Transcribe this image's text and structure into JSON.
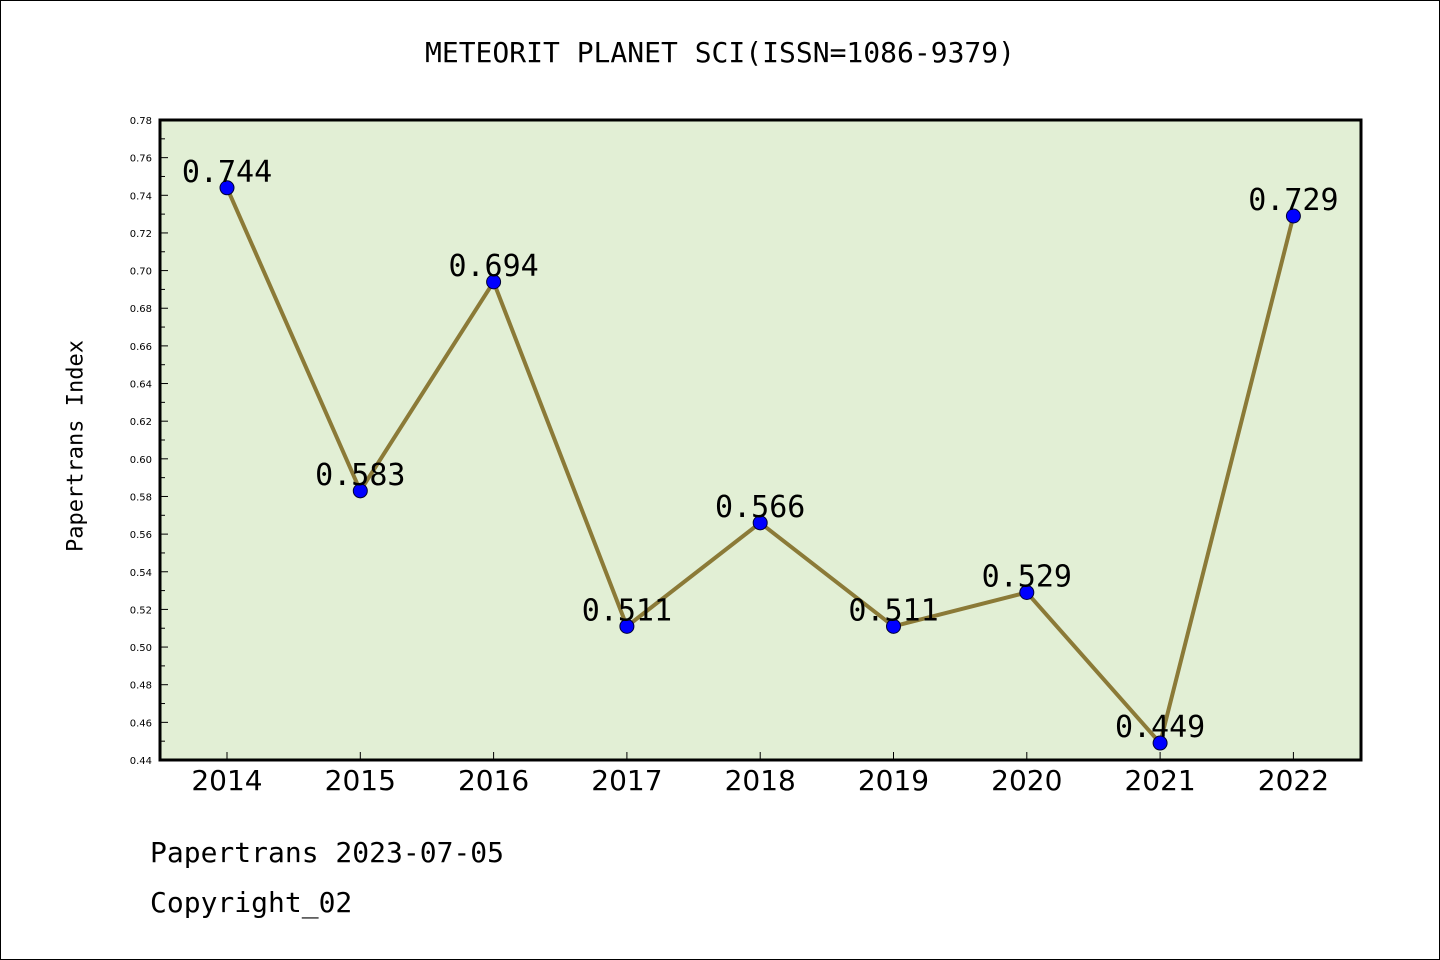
{
  "chart_data": {
    "type": "line",
    "title": "METEORIT PLANET SCI(ISSN=1086-9379)",
    "ylabel": "Papertrans Index",
    "xlabel": "",
    "categories": [
      "2014",
      "2015",
      "2016",
      "2017",
      "2018",
      "2019",
      "2020",
      "2021",
      "2022"
    ],
    "series": [
      {
        "values": [
          0.744,
          0.583,
          0.694,
          0.511,
          0.566,
          0.511,
          0.529,
          0.449,
          0.729
        ],
        "labels": [
          "0.744",
          "0.583",
          "0.694",
          "0.511",
          "0.566",
          "0.511",
          "0.529",
          "0.449",
          "0.729"
        ]
      }
    ],
    "ylim": [
      0.44,
      0.78
    ],
    "yticks": [
      "0.44",
      "0.46",
      "0.48",
      "0.50",
      "0.52",
      "0.54",
      "0.56",
      "0.58",
      "0.60",
      "0.62",
      "0.64",
      "0.66",
      "0.68",
      "0.70",
      "0.72",
      "0.74",
      "0.76",
      "0.78"
    ],
    "grid": false,
    "colors": {
      "plot_background": "#e2efd5",
      "line": "#8b7a37",
      "marker": "#0000ff"
    }
  },
  "footer": {
    "line1": "Papertrans 2023-07-05",
    "line2": "Copyright_02"
  }
}
